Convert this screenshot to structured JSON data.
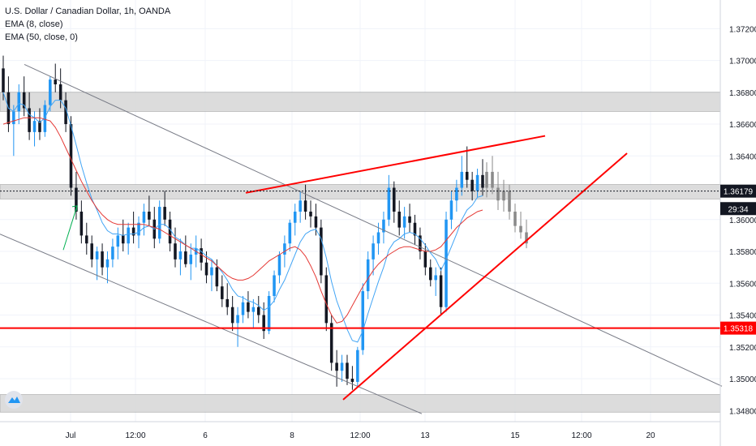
{
  "chart_data": {
    "type": "candlestick",
    "instrument": "U.S. Dollar / Canadian Dollar, 1h, OANDA",
    "indicators": [
      "EMA (8, close)",
      "EMA (50, close, 0)"
    ],
    "y_axis": {
      "range": [
        1.3473,
        1.3738
      ],
      "ticks": [
        "1.37200",
        "1.37000",
        "1.36800",
        "1.36600",
        "1.36400",
        "1.36200",
        "1.36000",
        "1.35800",
        "1.35600",
        "1.35400",
        "1.35200",
        "1.35000",
        "1.34800"
      ]
    },
    "x_axis": {
      "ticks": [
        "Jul",
        "12:00",
        "6",
        "8",
        "12:00",
        "13",
        "15",
        "12:00",
        "20"
      ]
    },
    "price_labels": [
      {
        "text": "1.36179",
        "value": 1.36179,
        "style": "dark"
      },
      {
        "text": "29:34",
        "value": 1.36069,
        "style": "dark"
      },
      {
        "text": "1.35318",
        "value": 1.35318,
        "style": "red"
      }
    ],
    "zones": [
      [
        1.3668,
        1.368
      ],
      [
        1.3613,
        1.3622
      ],
      [
        1.3479,
        1.349
      ]
    ],
    "horizontal_lines": [
      {
        "value": 1.35318,
        "color": "#ff0000"
      },
      {
        "value": 1.36179,
        "color": "#131722",
        "dotted": true
      }
    ],
    "trendlines": [
      {
        "points": [
          [
            30,
            1.36975
          ],
          [
            890,
            1.34953
          ]
        ],
        "color": "#787b86"
      },
      {
        "points": [
          [
            0,
            1.35909
          ],
          [
            520,
            1.3478
          ]
        ],
        "color": "#787b86"
      },
      {
        "points": [
          [
            303,
            1.36168
          ],
          [
            672,
            1.36526
          ]
        ],
        "color": "#ff0000"
      },
      {
        "points": [
          [
            423,
            1.34868
          ],
          [
            773,
            1.36417
          ]
        ],
        "color": "#ff0000"
      }
    ],
    "arrow": {
      "from": [
        78,
        1.35809
      ],
      "to": [
        95,
        1.36086
      ],
      "color": "#00b050"
    },
    "candles": [
      [
        1.3695,
        1.3703,
        1.3675,
        1.368
      ],
      [
        1.368,
        1.369,
        1.3655,
        1.366
      ],
      [
        1.366,
        1.3672,
        1.364,
        1.3668
      ],
      [
        1.3668,
        1.3685,
        1.366,
        1.368
      ],
      [
        1.368,
        1.369,
        1.3665,
        1.367
      ],
      [
        1.367,
        1.368,
        1.365,
        1.3655
      ],
      [
        1.3655,
        1.3668,
        1.3646,
        1.3662
      ],
      [
        1.3662,
        1.367,
        1.365,
        1.3655
      ],
      [
        1.3655,
        1.3675,
        1.3652,
        1.3672
      ],
      [
        1.3672,
        1.369,
        1.3668,
        1.3688
      ],
      [
        1.3688,
        1.3698,
        1.368,
        1.3685
      ],
      [
        1.3685,
        1.3695,
        1.367,
        1.3675
      ],
      [
        1.3675,
        1.368,
        1.3655,
        1.366
      ],
      [
        1.366,
        1.3665,
        1.3615,
        1.362
      ],
      [
        1.362,
        1.363,
        1.36,
        1.3605
      ],
      [
        1.3605,
        1.3612,
        1.3585,
        1.359
      ],
      [
        1.359,
        1.3598,
        1.3578,
        1.3585
      ],
      [
        1.3585,
        1.359,
        1.357,
        1.3575
      ],
      [
        1.3575,
        1.3583,
        1.3562,
        1.358
      ],
      [
        1.358,
        1.3585,
        1.3565,
        1.357
      ],
      [
        1.357,
        1.358,
        1.356,
        1.3575
      ],
      [
        1.3575,
        1.3588,
        1.357,
        1.3583
      ],
      [
        1.3583,
        1.3595,
        1.3575,
        1.359
      ],
      [
        1.359,
        1.36,
        1.358,
        1.3585
      ],
      [
        1.3585,
        1.3598,
        1.3578,
        1.3595
      ],
      [
        1.3595,
        1.3605,
        1.3585,
        1.359
      ],
      [
        1.359,
        1.3602,
        1.3582,
        1.3598
      ],
      [
        1.3598,
        1.361,
        1.359,
        1.3605
      ],
      [
        1.3605,
        1.3615,
        1.3596,
        1.36
      ],
      [
        1.36,
        1.3608,
        1.3582,
        1.3588
      ],
      [
        1.3588,
        1.3612,
        1.3585,
        1.3608
      ],
      [
        1.3608,
        1.3618,
        1.3596,
        1.36
      ],
      [
        1.36,
        1.3605,
        1.358,
        1.3585
      ],
      [
        1.3585,
        1.3595,
        1.357,
        1.3575
      ],
      [
        1.3575,
        1.3588,
        1.3565,
        1.358
      ],
      [
        1.358,
        1.359,
        1.357,
        1.3572
      ],
      [
        1.3572,
        1.3585,
        1.3562,
        1.3578
      ],
      [
        1.3578,
        1.359,
        1.357,
        1.3582
      ],
      [
        1.3582,
        1.3588,
        1.3568,
        1.3573
      ],
      [
        1.3573,
        1.358,
        1.356,
        1.3565
      ],
      [
        1.3565,
        1.3575,
        1.3555,
        1.357
      ],
      [
        1.357,
        1.3575,
        1.3555,
        1.3558
      ],
      [
        1.3558,
        1.3565,
        1.3545,
        1.355
      ],
      [
        1.355,
        1.356,
        1.354,
        1.3545
      ],
      [
        1.3545,
        1.3552,
        1.353,
        1.3535
      ],
      [
        1.3535,
        1.3545,
        1.352,
        1.354
      ],
      [
        1.354,
        1.3552,
        1.3535,
        1.3548
      ],
      [
        1.3548,
        1.3555,
        1.3538,
        1.3542
      ],
      [
        1.3542,
        1.355,
        1.3532,
        1.3545
      ],
      [
        1.3545,
        1.3552,
        1.3535,
        1.354
      ],
      [
        1.354,
        1.3548,
        1.3525,
        1.353
      ],
      [
        1.353,
        1.3555,
        1.3528,
        1.3552
      ],
      [
        1.3552,
        1.3568,
        1.3548,
        1.3565
      ],
      [
        1.3565,
        1.358,
        1.356,
        1.3578
      ],
      [
        1.3578,
        1.359,
        1.357,
        1.3585
      ],
      [
        1.3585,
        1.36,
        1.358,
        1.3598
      ],
      [
        1.3598,
        1.361,
        1.359,
        1.3605
      ],
      [
        1.3605,
        1.3618,
        1.3598,
        1.3612
      ],
      [
        1.3612,
        1.3622,
        1.36,
        1.3605
      ],
      [
        1.3605,
        1.3612,
        1.3595,
        1.3602
      ],
      [
        1.3602,
        1.361,
        1.359,
        1.3595
      ],
      [
        1.3595,
        1.36,
        1.356,
        1.3565
      ],
      [
        1.3565,
        1.357,
        1.353,
        1.3535
      ],
      [
        1.3535,
        1.354,
        1.3505,
        1.351
      ],
      [
        1.351,
        1.3518,
        1.3495,
        1.3505
      ],
      [
        1.3505,
        1.3515,
        1.3498,
        1.351
      ],
      [
        1.351,
        1.3515,
        1.3496,
        1.35
      ],
      [
        1.35,
        1.3508,
        1.3493,
        1.3498
      ],
      [
        1.3498,
        1.352,
        1.3495,
        1.3518
      ],
      [
        1.3518,
        1.356,
        1.3515,
        1.3555
      ],
      [
        1.3555,
        1.358,
        1.355,
        1.3575
      ],
      [
        1.3575,
        1.359,
        1.3565,
        1.3585
      ],
      [
        1.3585,
        1.3598,
        1.3578,
        1.3592
      ],
      [
        1.3592,
        1.3605,
        1.3585,
        1.36
      ],
      [
        1.36,
        1.3628,
        1.3596,
        1.362
      ],
      [
        1.362,
        1.3624,
        1.3598,
        1.3605
      ],
      [
        1.3605,
        1.3612,
        1.359,
        1.3595
      ],
      [
        1.3595,
        1.3608,
        1.3588,
        1.3602
      ],
      [
        1.3602,
        1.361,
        1.3592,
        1.3598
      ],
      [
        1.3598,
        1.3603,
        1.3584,
        1.359
      ],
      [
        1.359,
        1.3595,
        1.3575,
        1.358
      ],
      [
        1.358,
        1.3585,
        1.3565,
        1.357
      ],
      [
        1.357,
        1.3575,
        1.3558,
        1.3562
      ],
      [
        1.3562,
        1.357,
        1.3552,
        1.3565
      ],
      [
        1.3565,
        1.357,
        1.354,
        1.3545
      ],
      [
        1.3545,
        1.3605,
        1.3542,
        1.36
      ],
      [
        1.36,
        1.3618,
        1.3594,
        1.3612
      ],
      [
        1.3612,
        1.3625,
        1.3605,
        1.362
      ],
      [
        1.362,
        1.364,
        1.3615,
        1.363
      ],
      [
        1.363,
        1.3646,
        1.362,
        1.3625
      ],
      [
        1.3625,
        1.363,
        1.3612,
        1.3618
      ],
      [
        1.3618,
        1.3632,
        1.3614,
        1.3628
      ],
      [
        1.3628,
        1.3638,
        1.3615,
        1.362
      ]
    ],
    "projected_bars": [
      [
        1.362,
        1.3636,
        1.3614,
        1.363
      ],
      [
        1.363,
        1.364,
        1.3616,
        1.362
      ],
      [
        1.362,
        1.363,
        1.3606,
        1.3612
      ],
      [
        1.3612,
        1.3625,
        1.3605,
        1.3618
      ],
      [
        1.3618,
        1.3622,
        1.36,
        1.3605
      ],
      [
        1.3605,
        1.361,
        1.3592,
        1.3596
      ],
      [
        1.3596,
        1.3605,
        1.3588,
        1.3592
      ],
      [
        1.3592,
        1.36,
        1.3582,
        1.3585
      ]
    ],
    "ema8": [
      1.368,
      1.367,
      1.3668,
      1.3673,
      1.3672,
      1.3666,
      1.3664,
      1.3661,
      1.3664,
      1.3671,
      1.3675,
      1.3675,
      1.367,
      1.3659,
      1.3647,
      1.3634,
      1.3623,
      1.3613,
      1.3606,
      1.3598,
      1.3593,
      1.3591,
      1.3591,
      1.359,
      1.3591,
      1.3591,
      1.3592,
      1.3595,
      1.3596,
      1.3594,
      1.3597,
      1.3597,
      1.3594,
      1.3589,
      1.3587,
      1.3584,
      1.3582,
      1.3582,
      1.358,
      1.3577,
      1.3575,
      1.3571,
      1.3567,
      1.3562,
      1.3556,
      1.3552,
      1.3551,
      1.3549,
      1.3548,
      1.3546,
      1.3543,
      1.3545,
      1.3549,
      1.3556,
      1.3562,
      1.357,
      1.3578,
      1.3586,
      1.3591,
      1.3593,
      1.3594,
      1.3588,
      1.3576,
      1.3561,
      1.3549,
      1.354,
      1.3531,
      1.3524,
      1.3523,
      1.353,
      1.3541,
      1.3551,
      1.3561,
      1.357,
      1.3581,
      1.3586,
      1.3588,
      1.3591,
      1.3592,
      1.3591,
      1.3588,
      1.3584,
      1.3579,
      1.3575,
      1.3568,
      1.3575,
      1.3583,
      1.3591,
      1.36,
      1.3606,
      1.3609,
      1.3614,
      1.3615
    ],
    "ema50": [
      1.366,
      1.3661,
      1.3662,
      1.3663,
      1.3664,
      1.3664,
      1.3664,
      1.3664,
      1.3663,
      1.3662,
      1.3658,
      1.3652,
      1.3645,
      1.3638,
      1.3631,
      1.3624,
      1.3618,
      1.3612,
      1.3607,
      1.3603,
      1.36,
      1.3598,
      1.3597,
      1.3597,
      1.3597,
      1.3597,
      1.3597,
      1.3597,
      1.3596,
      1.3595,
      1.3594,
      1.3592,
      1.359,
      1.3588,
      1.3586,
      1.3584,
      1.3582,
      1.358,
      1.3578,
      1.3576,
      1.3574,
      1.3571,
      1.3568,
      1.3565,
      1.3563,
      1.3562,
      1.3562,
      1.3563,
      1.3565,
      1.3568,
      1.3571,
      1.3574,
      1.3576,
      1.3578,
      1.358,
      1.3582,
      1.3583,
      1.3581,
      1.3577,
      1.3571,
      1.3564,
      1.3555,
      1.3547,
      1.354,
      1.3535,
      1.3536,
      1.354,
      1.3546,
      1.3552,
      1.3558,
      1.3563,
      1.3568,
      1.3572,
      1.3575,
      1.3578,
      1.358,
      1.3582,
      1.3583,
      1.3583,
      1.3582,
      1.3581,
      1.358,
      1.358,
      1.3581,
      1.3583,
      1.3587,
      1.3591,
      1.3595,
      1.3598,
      1.3601,
      1.3603,
      1.3605,
      1.3606
    ]
  }
}
